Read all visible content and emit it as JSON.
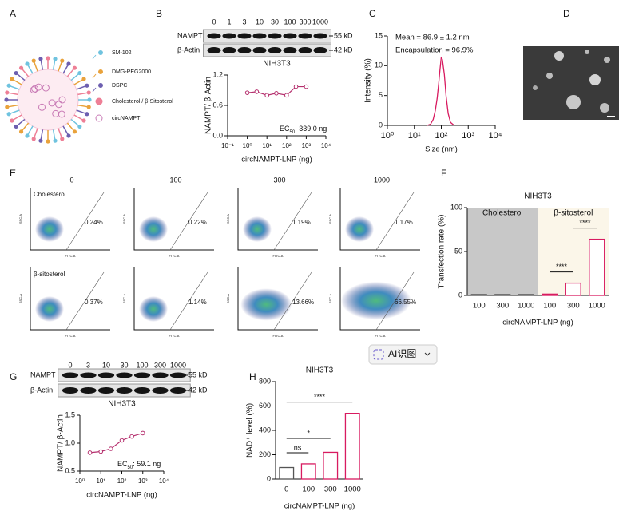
{
  "panel_labels": [
    "A",
    "B",
    "C",
    "D",
    "E",
    "F",
    "G",
    "H"
  ],
  "panel_a": {
    "legend": [
      "SM-102",
      "DMG-PEG2000",
      "DSPC",
      "Cholesterol / β-Sitosterol",
      "circNAMPT"
    ]
  },
  "panel_b": {
    "doses": [
      "0",
      "1",
      "3",
      "10",
      "30",
      "100",
      "300",
      "1000"
    ],
    "blot_labels": [
      "NAMPT",
      "β-Actin"
    ],
    "sizes": [
      "55 kD",
      "42 kD"
    ]
  },
  "panel_g": {
    "doses": [
      "0",
      "3",
      "10",
      "30",
      "100",
      "300",
      "1000"
    ],
    "blot_labels": [
      "NAMPT",
      "β-Actin"
    ],
    "sizes": [
      "55 kD",
      "42 kD"
    ]
  },
  "panel_e": {
    "columns": [
      "0",
      "100",
      "300",
      "1000"
    ],
    "rows": [
      "Cholesterol",
      "β-sitosterol"
    ],
    "percentages": [
      [
        "0.24%",
        "0.22%",
        "1.19%",
        "1.17%"
      ],
      [
        "0.37%",
        "1.14%",
        "13.66%",
        "66.55%"
      ]
    ],
    "y_axis": "SSC-A",
    "x_axis": "FITC-A"
  },
  "button": "AI识图",
  "chart_data": [
    {
      "type": "scatter",
      "title": "NIH3T3",
      "xlabel": "circNAMPT-LNP (ng)",
      "ylabel": "NAMPT/ β-Actin",
      "xscale": "log",
      "x": [
        1,
        3,
        10,
        30,
        100,
        300,
        1000
      ],
      "values": [
        0.85,
        0.87,
        0.8,
        0.84,
        0.8,
        0.97,
        0.97
      ],
      "color": "#b5306e",
      "xlim": [
        0.1,
        10000
      ],
      "xticks": [
        {
          "value": 0.1,
          "label": "10⁻¹"
        },
        {
          "value": 1,
          "label": "10⁰"
        },
        {
          "value": 10,
          "label": "10¹"
        },
        {
          "value": 100,
          "label": "10²"
        },
        {
          "value": 1000,
          "label": "10³"
        },
        {
          "value": 10000,
          "label": "10⁴"
        }
      ],
      "ylim": [
        0,
        1.2
      ],
      "yticks": [
        {
          "value": 0,
          "label": "0.0"
        },
        0.6,
        1.2
      ],
      "annotation": [
        "EC",
        "50",
        ": 339.0 ng"
      ]
    },
    {
      "type": "line",
      "xlabel": "Size (nm)",
      "ylabel": "Intensity (%)",
      "xscale": "log",
      "x": [
        30,
        40,
        50,
        60,
        70,
        80,
        90,
        100,
        110,
        130,
        150,
        180,
        220,
        300
      ],
      "values": [
        0,
        0.2,
        1,
        2.5,
        4.5,
        7,
        9.5,
        11.5,
        11,
        8.5,
        5,
        2,
        0.5,
        0
      ],
      "color": "#d81b60",
      "xlim": [
        1,
        10000
      ],
      "xticks": [
        {
          "value": 1,
          "label": "10⁰"
        },
        {
          "value": 10,
          "label": "10¹"
        },
        {
          "value": 100,
          "label": "10²"
        },
        {
          "value": 1000,
          "label": "10³"
        },
        {
          "value": 10000,
          "label": "10⁴"
        }
      ],
      "ylim": [
        0,
        15
      ],
      "yticks": [
        0,
        5,
        10,
        15
      ],
      "annotations": [
        "Mean = 86.9 ± 1.2 nm",
        "Encapsulation = 96.9%"
      ]
    },
    {
      "type": "bar",
      "title": "NIH3T3",
      "xlabel": "circNAMPT-LNP (ng)",
      "ylabel": "Transfection rate (%)",
      "series": [
        {
          "name": "Cholesterol",
          "background": "#c8c8c8",
          "color": "#555555",
          "categories": [
            "100",
            "300",
            "1000"
          ],
          "values": [
            1,
            1,
            1
          ],
          "comparisons": []
        },
        {
          "name": "β-sitosterol",
          "background": "#fbf6e9",
          "color": "#d81b60",
          "categories": [
            "100",
            "300",
            "1000"
          ],
          "values": [
            1.5,
            14,
            64
          ],
          "comparisons": [
            {
              "label": "****",
              "between": [
                "100",
                "300"
              ]
            },
            {
              "label": "****",
              "between": [
                "300",
                "1000"
              ]
            }
          ]
        }
      ],
      "ylim": [
        0,
        100
      ],
      "yticks": [
        0,
        50,
        100
      ]
    },
    {
      "type": "scatter",
      "title": "NIH3T3",
      "xlabel": "circNAMPT-LNP (ng)",
      "ylabel": "NAMPT/ β-Actin",
      "xscale": "log",
      "x": [
        3,
        10,
        30,
        100,
        300,
        1000
      ],
      "values": [
        0.83,
        0.85,
        0.9,
        1.05,
        1.12,
        1.18
      ],
      "color": "#b5306e",
      "xlim": [
        1,
        10000
      ],
      "xticks": [
        {
          "value": 1,
          "label": "10⁰"
        },
        {
          "value": 10,
          "label": "10¹"
        },
        {
          "value": 100,
          "label": "10²"
        },
        {
          "value": 1000,
          "label": "10³"
        },
        {
          "value": 10000,
          "label": "10⁴"
        }
      ],
      "ylim": [
        0.5,
        1.5
      ],
      "yticks": [
        0.5,
        {
          "value": 1,
          "label": "1.0"
        },
        1.5
      ],
      "annotation": [
        "EC",
        "50",
        ": 59.1 ng"
      ]
    },
    {
      "type": "bar",
      "title": "NIH3T3",
      "xlabel": "circNAMPT-LNP (ng)",
      "ylabel": "NAD⁺ level (%)",
      "categories": [
        "0",
        "100",
        "300",
        "1000"
      ],
      "values": [
        95,
        125,
        220,
        540
      ],
      "colors": [
        "#555555",
        "#d81b60",
        "#d81b60",
        "#d81b60"
      ],
      "comparisons": [
        {
          "label": "ns",
          "between": [
            "0",
            "100"
          ]
        },
        {
          "label": "*",
          "between": [
            "0",
            "300"
          ]
        },
        {
          "label": "****",
          "between": [
            "0",
            "1000"
          ]
        }
      ],
      "ylim": [
        0,
        800
      ],
      "yticks": [
        0,
        200,
        400,
        600,
        800
      ]
    }
  ]
}
